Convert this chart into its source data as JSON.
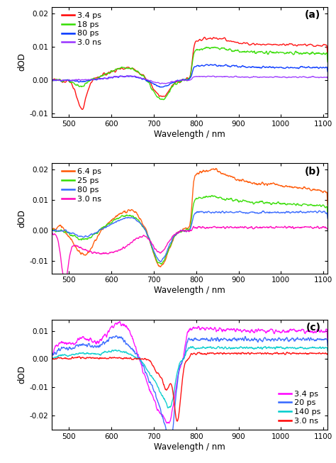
{
  "panel_a": {
    "label": "(a)",
    "ylim": [
      -0.011,
      0.022
    ],
    "yticks": [
      -0.01,
      0.0,
      0.01,
      0.02
    ],
    "series": [
      {
        "label": "3.4 ps",
        "color": "#FF0000",
        "lw": 1.0
      },
      {
        "label": "18 ps",
        "color": "#33DD00",
        "lw": 1.0
      },
      {
        "label": "80 ps",
        "color": "#0033FF",
        "lw": 1.0
      },
      {
        "label": "3.0 ns",
        "color": "#9933FF",
        "lw": 1.0
      }
    ]
  },
  "panel_b": {
    "label": "(b)",
    "ylim": [
      -0.014,
      0.022
    ],
    "yticks": [
      -0.01,
      0.0,
      0.01,
      0.02
    ],
    "series": [
      {
        "label": "6.4 ps",
        "color": "#FF5500",
        "lw": 1.0
      },
      {
        "label": "25 ps",
        "color": "#33DD00",
        "lw": 1.0
      },
      {
        "label": "80 ps",
        "color": "#3366FF",
        "lw": 1.0
      },
      {
        "label": "3.0 ns",
        "color": "#FF00BB",
        "lw": 1.0
      }
    ]
  },
  "panel_c": {
    "label": "(c)",
    "ylim": [
      -0.025,
      0.014
    ],
    "yticks": [
      -0.02,
      -0.01,
      0.0,
      0.01
    ],
    "series": [
      {
        "label": "3.4 ps",
        "color": "#FF00FF",
        "lw": 1.0
      },
      {
        "label": "20 ps",
        "color": "#3366FF",
        "lw": 1.0
      },
      {
        "label": "140 ps",
        "color": "#00CCCC",
        "lw": 1.0
      },
      {
        "label": "3.0 ns",
        "color": "#FF0000",
        "lw": 1.0
      }
    ]
  },
  "xlabel": "Wavelength / nm",
  "ylabel": "dOD",
  "xlim": [
    460,
    1110
  ],
  "xticks": [
    500,
    600,
    700,
    800,
    900,
    1000,
    1100
  ],
  "bg_color": "#FFFFFF"
}
